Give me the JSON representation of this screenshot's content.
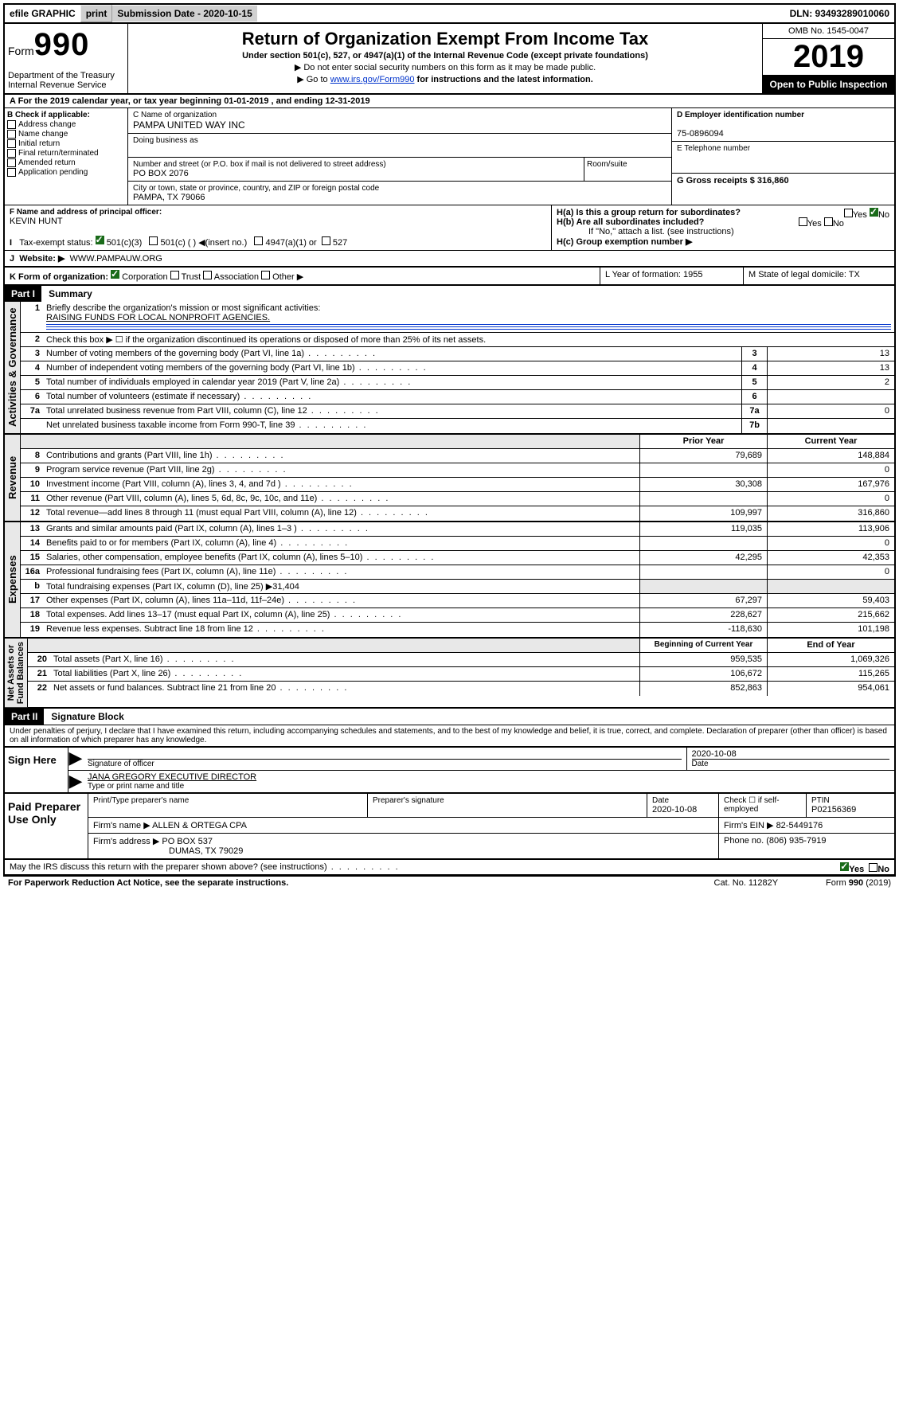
{
  "toolbar": {
    "efile": "efile GRAPHIC",
    "print": "print",
    "subdate_label": "Submission Date - 2020-10-15",
    "dln": "DLN: 93493289010060"
  },
  "header": {
    "form_word": "Form",
    "form_num": "990",
    "dept": "Department of the Treasury\nInternal Revenue Service",
    "title": "Return of Organization Exempt From Income Tax",
    "subtitle": "Under section 501(c), 527, or 4947(a)(1) of the Internal Revenue Code (except private foundations)",
    "note1": "▶ Do not enter social security numbers on this form as it may be made public.",
    "note2_pre": "▶ Go to ",
    "note2_link": "www.irs.gov/Form990",
    "note2_post": " for instructions and the latest information.",
    "omb": "OMB No. 1545-0047",
    "year": "2019",
    "open": "Open to Public Inspection"
  },
  "row_a": "A For the 2019 calendar year, or tax year beginning 01-01-2019    , and ending 12-31-2019",
  "col_b": {
    "title": "B Check if applicable:",
    "items": [
      "Address change",
      "Name change",
      "Initial return",
      "Final return/terminated",
      "Amended return",
      "Application pending"
    ]
  },
  "col_c": {
    "name_lbl": "C Name of organization",
    "name": "PAMPA UNITED WAY INC",
    "dba_lbl": "Doing business as",
    "addr_lbl": "Number and street (or P.O. box if mail is not delivered to street address)",
    "room_lbl": "Room/suite",
    "addr": "PO BOX 2076",
    "city_lbl": "City or town, state or province, country, and ZIP or foreign postal code",
    "city": "PAMPA, TX  79066"
  },
  "col_de": {
    "d_lbl": "D Employer identification number",
    "d_val": "75-0896094",
    "e_lbl": "E Telephone number",
    "g_lbl": "G Gross receipts $ 316,860"
  },
  "row_f": {
    "f_lbl": "F  Name and address of principal officer:",
    "f_val": "KEVIN HUNT",
    "h_a": "H(a)  Is this a group return for subordinates?",
    "h_b": "H(b)  Are all subordinates included?",
    "h_note": "If \"No,\" attach a list. (see instructions)",
    "h_c": "H(c)  Group exemption number ▶",
    "yes": "Yes",
    "no": "No"
  },
  "row_i": {
    "label": "Tax-exempt status:",
    "opts": [
      "501(c)(3)",
      "501(c) (  ) ◀(insert no.)",
      "4947(a)(1) or",
      "527"
    ]
  },
  "row_j": {
    "label": "J",
    "website_lbl": "Website: ▶",
    "website": "WWW.PAMPAUW.ORG"
  },
  "row_k": {
    "label": "K Form of organization:",
    "opts": [
      "Corporation",
      "Trust",
      "Association",
      "Other ▶"
    ],
    "l": "L Year of formation: 1955",
    "m": "M State of legal domicile: TX"
  },
  "part1": {
    "hdr": "Part I",
    "title": "Summary"
  },
  "summary": {
    "q1": "Briefly describe the organization's mission or most significant activities:",
    "q1v": "RAISING FUNDS FOR LOCAL NONPROFIT AGENCIES.",
    "q2": "Check this box ▶ ☐  if the organization discontinued its operations or disposed of more than 25% of its net assets.",
    "rows_ag": [
      {
        "n": "3",
        "t": "Number of voting members of the governing body (Part VI, line 1a)",
        "k": "3",
        "v": "13"
      },
      {
        "n": "4",
        "t": "Number of independent voting members of the governing body (Part VI, line 1b)",
        "k": "4",
        "v": "13"
      },
      {
        "n": "5",
        "t": "Total number of individuals employed in calendar year 2019 (Part V, line 2a)",
        "k": "5",
        "v": "2"
      },
      {
        "n": "6",
        "t": "Total number of volunteers (estimate if necessary)",
        "k": "6",
        "v": ""
      },
      {
        "n": "7a",
        "t": "Total unrelated business revenue from Part VIII, column (C), line 12",
        "k": "7a",
        "v": "0"
      },
      {
        "n": "",
        "t": "Net unrelated business taxable income from Form 990-T, line 39",
        "k": "7b",
        "v": ""
      }
    ],
    "col_prior": "Prior Year",
    "col_curr": "Current Year",
    "revenue": [
      {
        "n": "8",
        "t": "Contributions and grants (Part VIII, line 1h)",
        "p": "79,689",
        "c": "148,884"
      },
      {
        "n": "9",
        "t": "Program service revenue (Part VIII, line 2g)",
        "p": "",
        "c": "0"
      },
      {
        "n": "10",
        "t": "Investment income (Part VIII, column (A), lines 3, 4, and 7d )",
        "p": "30,308",
        "c": "167,976"
      },
      {
        "n": "11",
        "t": "Other revenue (Part VIII, column (A), lines 5, 6d, 8c, 9c, 10c, and 11e)",
        "p": "",
        "c": "0"
      },
      {
        "n": "12",
        "t": "Total revenue—add lines 8 through 11 (must equal Part VIII, column (A), line 12)",
        "p": "109,997",
        "c": "316,860"
      }
    ],
    "expenses": [
      {
        "n": "13",
        "t": "Grants and similar amounts paid (Part IX, column (A), lines 1–3 )",
        "p": "119,035",
        "c": "113,906"
      },
      {
        "n": "14",
        "t": "Benefits paid to or for members (Part IX, column (A), line 4)",
        "p": "",
        "c": "0"
      },
      {
        "n": "15",
        "t": "Salaries, other compensation, employee benefits (Part IX, column (A), lines 5–10)",
        "p": "42,295",
        "c": "42,353"
      },
      {
        "n": "16a",
        "t": "Professional fundraising fees (Part IX, column (A), line 11e)",
        "p": "",
        "c": "0"
      },
      {
        "n": "b",
        "t": "Total fundraising expenses (Part IX, column (D), line 25) ▶31,404",
        "p": "—shade—",
        "c": "—shade—"
      },
      {
        "n": "17",
        "t": "Other expenses (Part IX, column (A), lines 11a–11d, 11f–24e)",
        "p": "67,297",
        "c": "59,403"
      },
      {
        "n": "18",
        "t": "Total expenses. Add lines 13–17 (must equal Part IX, column (A), line 25)",
        "p": "228,627",
        "c": "215,662"
      },
      {
        "n": "19",
        "t": "Revenue less expenses. Subtract line 18 from line 12",
        "p": "-118,630",
        "c": "101,198"
      }
    ],
    "col_beg": "Beginning of Current Year",
    "col_end": "End of Year",
    "net": [
      {
        "n": "20",
        "t": "Total assets (Part X, line 16)",
        "p": "959,535",
        "c": "1,069,326"
      },
      {
        "n": "21",
        "t": "Total liabilities (Part X, line 26)",
        "p": "106,672",
        "c": "115,265"
      },
      {
        "n": "22",
        "t": "Net assets or fund balances. Subtract line 21 from line 20",
        "p": "852,863",
        "c": "954,061"
      }
    ]
  },
  "vtabs": {
    "ag": "Activities & Governance",
    "rev": "Revenue",
    "exp": "Expenses",
    "net": "Net Assets or\nFund Balances"
  },
  "part2": {
    "hdr": "Part II",
    "title": "Signature Block"
  },
  "sig": {
    "perjury": "Under penalties of perjury, I declare that I have examined this return, including accompanying schedules and statements, and to the best of my knowledge and belief, it is true, correct, and complete. Declaration of preparer (other than officer) is based on all information of which preparer has any knowledge.",
    "sign_here": "Sign Here",
    "date": "2020-10-08",
    "sig_officer": "Signature of officer",
    "date_lbl": "Date",
    "name": "JANA GREGORY EXECUTIVE DIRECTOR",
    "name_lbl": "Type or print name and title"
  },
  "paid": {
    "title": "Paid Preparer Use Only",
    "h_name": "Print/Type preparer's name",
    "h_sig": "Preparer's signature",
    "h_date": "Date",
    "h_check": "Check ☐ if self-employed",
    "h_ptin": "PTIN",
    "date": "2020-10-08",
    "ptin": "P02156369",
    "firm_lbl": "Firm's name    ▶",
    "firm": "ALLEN & ORTEGA CPA",
    "ein_lbl": "Firm's EIN ▶",
    "ein": "82-5449176",
    "addr_lbl": "Firm's address ▶",
    "addr": "PO BOX 537",
    "addr2": "DUMAS, TX  79029",
    "phone_lbl": "Phone no.",
    "phone": "(806) 935-7919"
  },
  "footer": {
    "discuss": "May the IRS discuss this return with the preparer shown above? (see instructions)",
    "yes": "Yes",
    "no": "No",
    "pra": "For Paperwork Reduction Act Notice, see the separate instructions.",
    "cat": "Cat. No. 11282Y",
    "form": "Form 990 (2019)"
  }
}
